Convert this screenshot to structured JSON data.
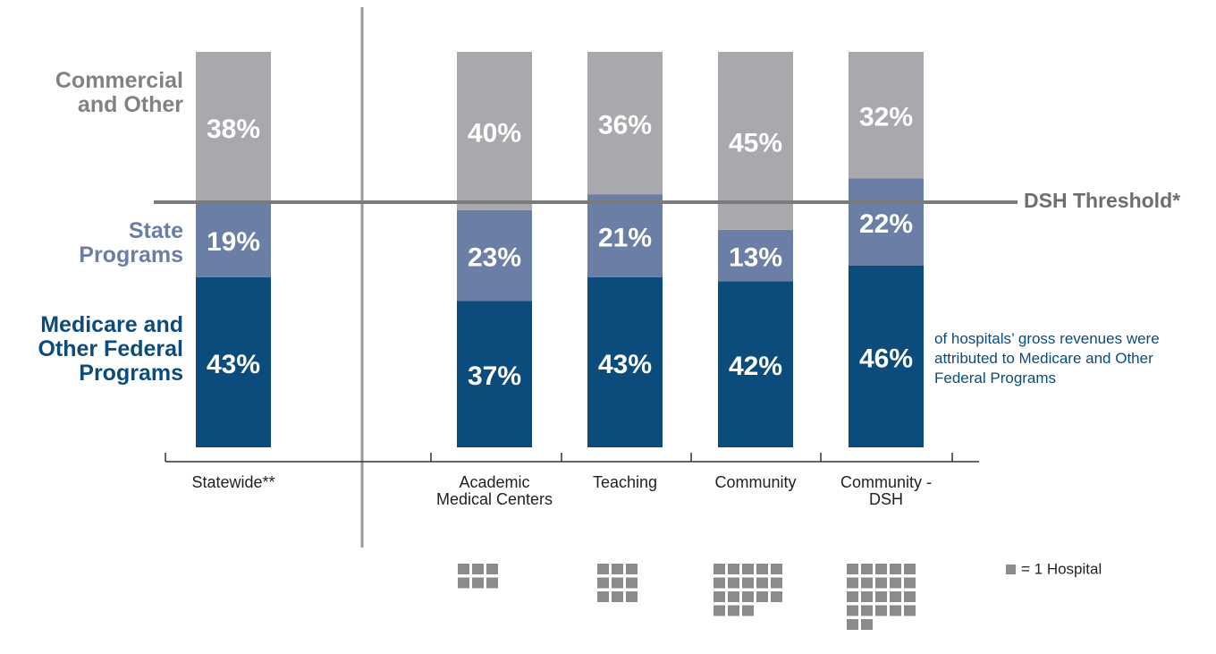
{
  "chart_data": {
    "type": "stacked_bar",
    "categories": [
      "Statewide**",
      "Academic Medical Centers",
      "Teaching",
      "Community",
      "Community -DSH"
    ],
    "series": [
      {
        "name": "Medicare and Other Federal Programs",
        "color": "#0b4c7d",
        "values": [
          43,
          37,
          43,
          42,
          46
        ],
        "value_labels": [
          "43%",
          "37%",
          "43%",
          "42%",
          "46%"
        ]
      },
      {
        "name": "State Programs",
        "color": "#6a7ea6",
        "values": [
          19,
          23,
          21,
          13,
          22
        ],
        "value_labels": [
          "19%",
          "23%",
          "21%",
          "13%",
          "22%"
        ]
      },
      {
        "name": "Commercial and Other",
        "color": "#a7a9ac",
        "values": [
          38,
          40,
          36,
          45,
          32
        ],
        "value_labels": [
          "38%",
          "40%",
          "36%",
          "45%",
          "32%"
        ]
      }
    ],
    "ylim": [
      0,
      100
    ],
    "threshold": {
      "label": "DSH Threshold*",
      "value": 62
    },
    "annotation": "of hospitals’ gross revenues were attributed to Medicare and Other Federal Programs",
    "hospital_counts": [
      null,
      6,
      9,
      18,
      22
    ],
    "hospital_legend": "= 1 Hospital",
    "hospital_color": "#8a8b8d"
  }
}
